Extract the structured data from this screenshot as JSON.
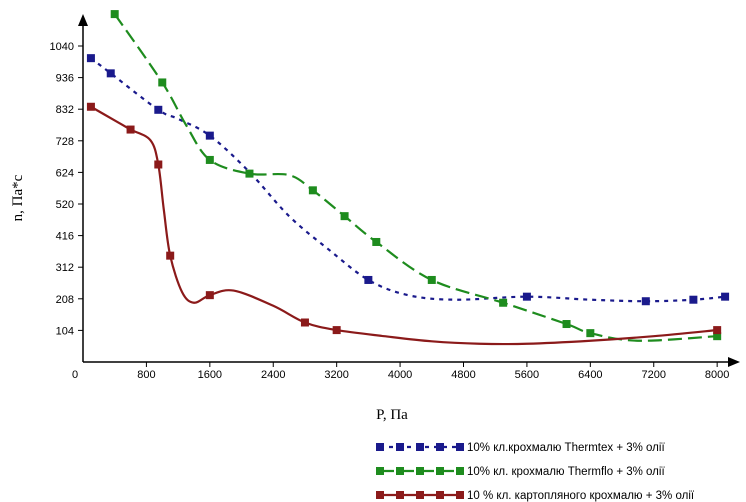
{
  "chart_data": {
    "type": "line",
    "title": "",
    "xlabel": "P, Па",
    "ylabel": "n, Па*с",
    "x_ticks": [
      "0",
      "800",
      "1600",
      "2400",
      "3200",
      "4000",
      "4800",
      "5600",
      "6400",
      "7200",
      "8000"
    ],
    "y_ticks": [
      "104",
      "208",
      "312",
      "416",
      "520",
      "624",
      "728",
      "832",
      "936",
      "1040"
    ],
    "xlim": [
      0,
      8300
    ],
    "ylim": [
      0,
      1110
    ],
    "grid": false,
    "legend_position": "bottom-right",
    "series": [
      {
        "name": "10% кл.крохмалю Thermtex + 3% олії",
        "color": "#1a1a8c",
        "dash": "4,5",
        "markers": [
          [
            100,
            1000
          ],
          [
            350,
            950
          ],
          [
            950,
            830
          ],
          [
            1600,
            745
          ],
          [
            3600,
            270
          ],
          [
            5600,
            215
          ],
          [
            7100,
            200
          ],
          [
            7700,
            205
          ],
          [
            8100,
            215
          ]
        ],
        "curve": [
          [
            100,
            1000
          ],
          [
            350,
            950
          ],
          [
            950,
            830
          ],
          [
            1200,
            800
          ],
          [
            1600,
            745
          ],
          [
            2100,
            625
          ],
          [
            2600,
            480
          ],
          [
            3100,
            370
          ],
          [
            3600,
            270
          ],
          [
            4100,
            220
          ],
          [
            4700,
            205
          ],
          [
            5600,
            215
          ],
          [
            6400,
            205
          ],
          [
            7100,
            200
          ],
          [
            7700,
            205
          ],
          [
            8100,
            215
          ]
        ]
      },
      {
        "name": "10% кл. крохмалю Thermflo + 3% олії",
        "color": "#1e8c1e",
        "dash": "14,6",
        "markers": [
          [
            400,
            1145
          ],
          [
            1000,
            920
          ],
          [
            1600,
            665
          ],
          [
            2100,
            620
          ],
          [
            2900,
            565
          ],
          [
            3300,
            480
          ],
          [
            3700,
            395
          ],
          [
            4400,
            270
          ],
          [
            5300,
            195
          ],
          [
            6100,
            125
          ],
          [
            6400,
            95
          ],
          [
            8000,
            85
          ]
        ],
        "curve": [
          [
            400,
            1145
          ],
          [
            1000,
            920
          ],
          [
            1300,
            780
          ],
          [
            1600,
            665
          ],
          [
            2100,
            620
          ],
          [
            2600,
            615
          ],
          [
            2900,
            565
          ],
          [
            3300,
            480
          ],
          [
            3700,
            395
          ],
          [
            4400,
            270
          ],
          [
            5300,
            195
          ],
          [
            6100,
            125
          ],
          [
            6400,
            95
          ],
          [
            7000,
            70
          ],
          [
            8000,
            85
          ]
        ]
      },
      {
        "name": "10 % кл. картопляного крохмалю + 3% олії",
        "color": "#8b1a1a",
        "dash": "",
        "markers": [
          [
            100,
            840
          ],
          [
            600,
            765
          ],
          [
            950,
            650
          ],
          [
            1100,
            350
          ],
          [
            1600,
            220
          ],
          [
            2800,
            130
          ],
          [
            3200,
            105
          ],
          [
            8000,
            105
          ]
        ],
        "curve": [
          [
            100,
            840
          ],
          [
            400,
            795
          ],
          [
            600,
            765
          ],
          [
            850,
            730
          ],
          [
            950,
            650
          ],
          [
            1020,
            500
          ],
          [
            1100,
            350
          ],
          [
            1250,
            230
          ],
          [
            1400,
            195
          ],
          [
            1600,
            220
          ],
          [
            1900,
            235
          ],
          [
            2400,
            185
          ],
          [
            2800,
            130
          ],
          [
            3200,
            105
          ],
          [
            3800,
            85
          ],
          [
            4400,
            68
          ],
          [
            5000,
            60
          ],
          [
            5600,
            60
          ],
          [
            6400,
            70
          ],
          [
            7200,
            85
          ],
          [
            8000,
            105
          ]
        ]
      }
    ]
  }
}
